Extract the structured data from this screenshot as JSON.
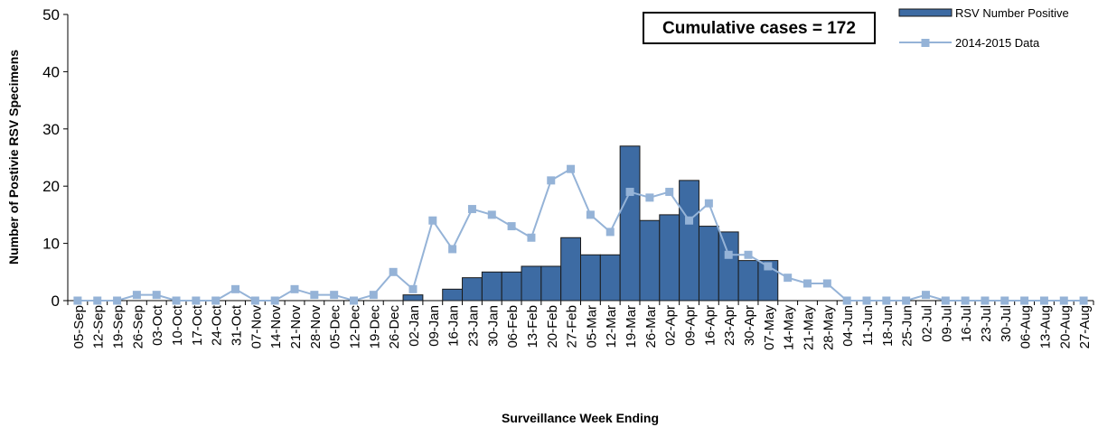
{
  "chart_data": {
    "type": "bar_line",
    "y_label": "Number of Postivie RSV Specimens",
    "x_label": "Surveillance Week Ending",
    "annotation": "Cumulative cases = 172",
    "categories": [
      "05-Sep",
      "12-Sep",
      "19-Sep",
      "26-Sep",
      "03-Oct",
      "10-Oct",
      "17-Oct",
      "24-Oct",
      "31-Oct",
      "07-Nov",
      "14-Nov",
      "21-Nov",
      "28-Nov",
      "05-Dec",
      "12-Dec",
      "19-Dec",
      "26-Dec",
      "02-Jan",
      "09-Jan",
      "16-Jan",
      "23-Jan",
      "30-Jan",
      "06-Feb",
      "13-Feb",
      "20-Feb",
      "27-Feb",
      "05-Mar",
      "12-Mar",
      "19-Mar",
      "26-Mar",
      "02-Apr",
      "09-Apr",
      "16-Apr",
      "23-Apr",
      "30-Apr",
      "07-May",
      "14-May",
      "21-May",
      "28-May",
      "04-Jun",
      "11-Jun",
      "18-Jun",
      "25-Jun",
      "02-Jul",
      "09-Jul",
      "16-Jul",
      "23-Jul",
      "30-Jul",
      "06-Aug",
      "13-Aug",
      "20-Aug",
      "27-Aug"
    ],
    "series": [
      {
        "name": "RSV Number Positive",
        "type": "bar",
        "color": "#3d6ba3",
        "values": [
          0,
          0,
          0,
          0,
          0,
          0,
          0,
          0,
          0,
          0,
          0,
          0,
          0,
          0,
          0,
          0,
          0,
          1,
          0,
          2,
          4,
          5,
          5,
          6,
          6,
          11,
          8,
          8,
          27,
          14,
          15,
          21,
          13,
          12,
          7,
          7,
          null,
          null,
          null,
          null,
          null,
          null,
          null,
          null,
          null,
          null,
          null,
          null,
          null,
          null,
          null,
          null
        ]
      },
      {
        "name": "2014-2015 Data",
        "type": "line",
        "color": "#95b3d7",
        "values": [
          0,
          0,
          0,
          1,
          1,
          0,
          0,
          0,
          2,
          0,
          0,
          2,
          1,
          1,
          0,
          1,
          5,
          2,
          14,
          9,
          16,
          15,
          13,
          11,
          21,
          23,
          15,
          12,
          19,
          18,
          19,
          14,
          17,
          8,
          8,
          6,
          4,
          3,
          3,
          0,
          0,
          0,
          0,
          1,
          0,
          0,
          0,
          0,
          0,
          0,
          0,
          0
        ]
      }
    ],
    "ylim": [
      0,
      50
    ],
    "yticks": [
      0,
      10,
      20,
      30,
      40,
      50
    ],
    "legend": "top-right"
  }
}
